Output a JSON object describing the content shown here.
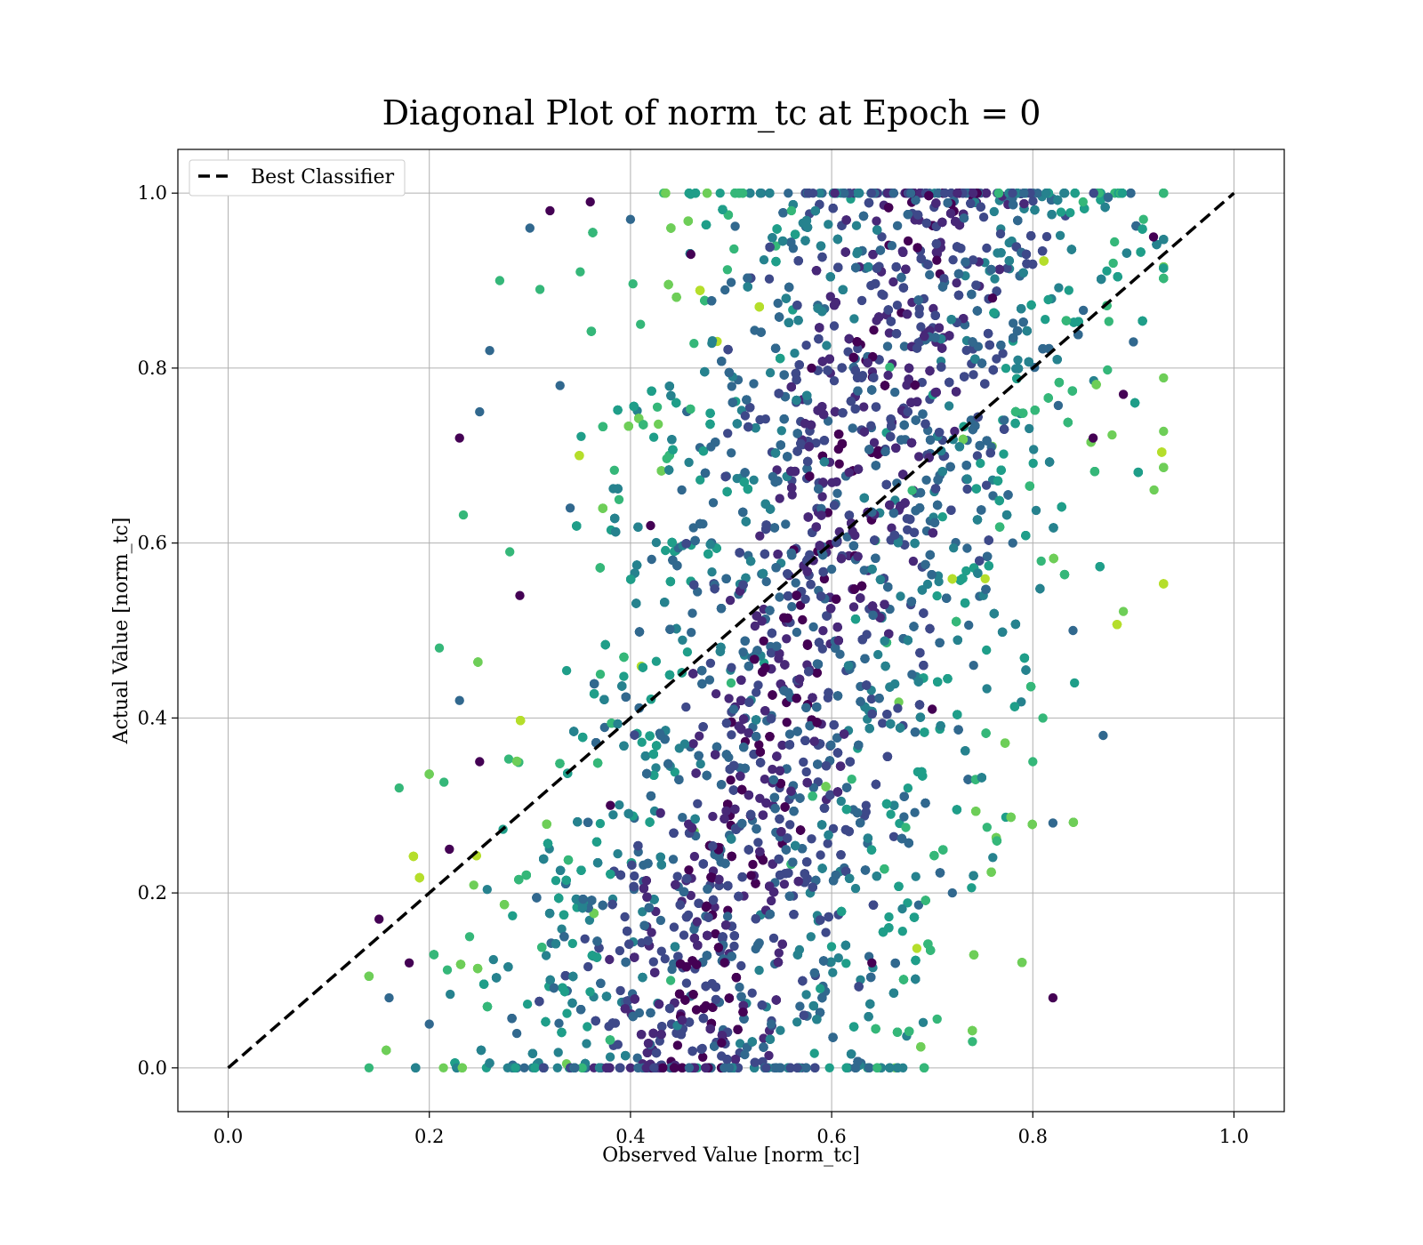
{
  "chart_data": {
    "type": "scatter",
    "title": "Diagonal Plot of norm_tc at Epoch = 0",
    "xlabel": "Observed Value [norm_tc]",
    "ylabel": "Actual Value [norm_tc]",
    "xlim": [
      -0.05,
      1.05
    ],
    "ylim": [
      -0.05,
      1.05
    ],
    "grid": true,
    "legend_position": "top-left",
    "xticks": [
      "0.0",
      "0.2",
      "0.4",
      "0.6",
      "0.8",
      "1.0"
    ],
    "yticks": [
      "0.0",
      "0.2",
      "0.4",
      "0.6",
      "0.8",
      "1.0"
    ],
    "colormap": "viridis",
    "colormap_stops": [
      "#440154",
      "#482878",
      "#3e4989",
      "#31688e",
      "#26828e",
      "#1f9e89",
      "#35b779",
      "#6ece58",
      "#b5de2b"
    ],
    "series": [
      {
        "name": "Best Classifier",
        "kind": "line",
        "style": "dashed",
        "color": "#000000",
        "x": [
          0.0,
          1.0
        ],
        "y": [
          0.0,
          1.0
        ]
      },
      {
        "kind": "scatter",
        "description_of_density": "dense band of points roughly 0.15 to 0.92 in observed value across full 0 to 1 actual range",
        "points": [
          [
            0.15,
            0.17
          ],
          [
            0.16,
            0.08
          ],
          [
            0.17,
            0.32
          ],
          [
            0.18,
            0.12
          ],
          [
            0.2,
            0.05
          ],
          [
            0.21,
            0.48
          ],
          [
            0.22,
            0.25
          ],
          [
            0.23,
            0.42
          ],
          [
            0.24,
            0.15
          ],
          [
            0.25,
            0.35
          ],
          [
            0.26,
            0.82
          ],
          [
            0.27,
            0.9
          ],
          [
            0.23,
            0.72
          ],
          [
            0.25,
            0.75
          ],
          [
            0.28,
            0.59
          ],
          [
            0.29,
            0.54
          ],
          [
            0.3,
            0.96
          ],
          [
            0.31,
            0.89
          ],
          [
            0.32,
            0.98
          ],
          [
            0.33,
            0.78
          ],
          [
            0.35,
            0.91
          ],
          [
            0.36,
            0.99
          ],
          [
            0.34,
            0.64
          ],
          [
            0.37,
            0.45
          ],
          [
            0.38,
            0.3
          ],
          [
            0.4,
            0.97
          ],
          [
            0.41,
            0.85
          ],
          [
            0.42,
            0.62
          ],
          [
            0.43,
            0.38
          ],
          [
            0.44,
            0.1
          ],
          [
            0.46,
            0.93
          ],
          [
            0.48,
            0.71
          ],
          [
            0.5,
            0.44
          ],
          [
            0.52,
            0.22
          ],
          [
            0.54,
            0.05
          ],
          [
            0.56,
            0.98
          ],
          [
            0.58,
            0.8
          ],
          [
            0.6,
            0.57
          ],
          [
            0.62,
            0.33
          ],
          [
            0.64,
            0.12
          ],
          [
            0.66,
            0.94
          ],
          [
            0.68,
            0.66
          ],
          [
            0.7,
            0.41
          ],
          [
            0.72,
            0.2
          ],
          [
            0.74,
            0.03
          ],
          [
            0.76,
            0.88
          ],
          [
            0.78,
            0.6
          ],
          [
            0.8,
            0.35
          ],
          [
            0.82,
            0.08
          ],
          [
            0.84,
            0.5
          ],
          [
            0.85,
            0.99
          ],
          [
            0.86,
            0.72
          ],
          [
            0.87,
            0.38
          ],
          [
            0.88,
            0.92
          ],
          [
            0.89,
            0.77
          ],
          [
            0.9,
            0.83
          ],
          [
            0.91,
            0.97
          ],
          [
            0.92,
            0.95
          ],
          [
            0.82,
            0.28
          ],
          [
            0.81,
            0.4
          ]
        ]
      }
    ]
  }
}
